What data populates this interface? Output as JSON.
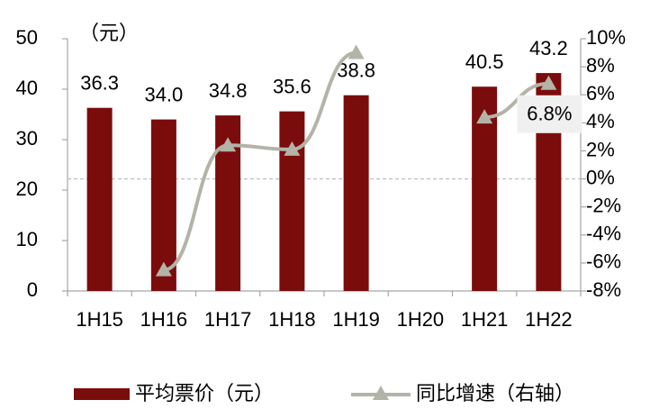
{
  "chart_data": {
    "type": "bar_line",
    "y_unit": "（元）",
    "categories": [
      "1H15",
      "1H16",
      "1H17",
      "1H18",
      "1H19",
      "1H20",
      "1H21",
      "1H22"
    ],
    "series": [
      {
        "name": "平均票价（元）",
        "type": "bar",
        "color": "#7b0c0c",
        "values": [
          36.3,
          34.0,
          34.8,
          35.6,
          38.8,
          null,
          40.5,
          43.2
        ],
        "value_labels": [
          "36.3",
          "34.0",
          "34.8",
          "35.6",
          "38.8",
          null,
          "40.5",
          "43.2"
        ]
      },
      {
        "name": "同比增速（右轴）",
        "type": "line",
        "axis": "y2",
        "color": "#b3b3a8",
        "values": [
          null,
          -6.5,
          2.4,
          2.1,
          9.0,
          null,
          4.4,
          6.8
        ],
        "value_labels": [
          null,
          null,
          null,
          null,
          null,
          null,
          null,
          "6.8%"
        ]
      }
    ],
    "ylim": [
      0,
      50
    ],
    "yticks": [
      0,
      10,
      20,
      30,
      40,
      50
    ],
    "y2lim": [
      -8,
      10
    ],
    "y2ticks": [
      {
        "value": -8,
        "label": "-8%"
      },
      {
        "value": -6,
        "label": "-6%"
      },
      {
        "value": -4,
        "label": "-4%"
      },
      {
        "value": -2,
        "label": "-2%"
      },
      {
        "value": 0,
        "label": "0%"
      },
      {
        "value": 2,
        "label": "2%"
      },
      {
        "value": 4,
        "label": "4%"
      },
      {
        "value": 6,
        "label": "6%"
      },
      {
        "value": 8,
        "label": "8%"
      },
      {
        "value": 10,
        "label": "10%"
      }
    ],
    "legend": "bottom"
  }
}
